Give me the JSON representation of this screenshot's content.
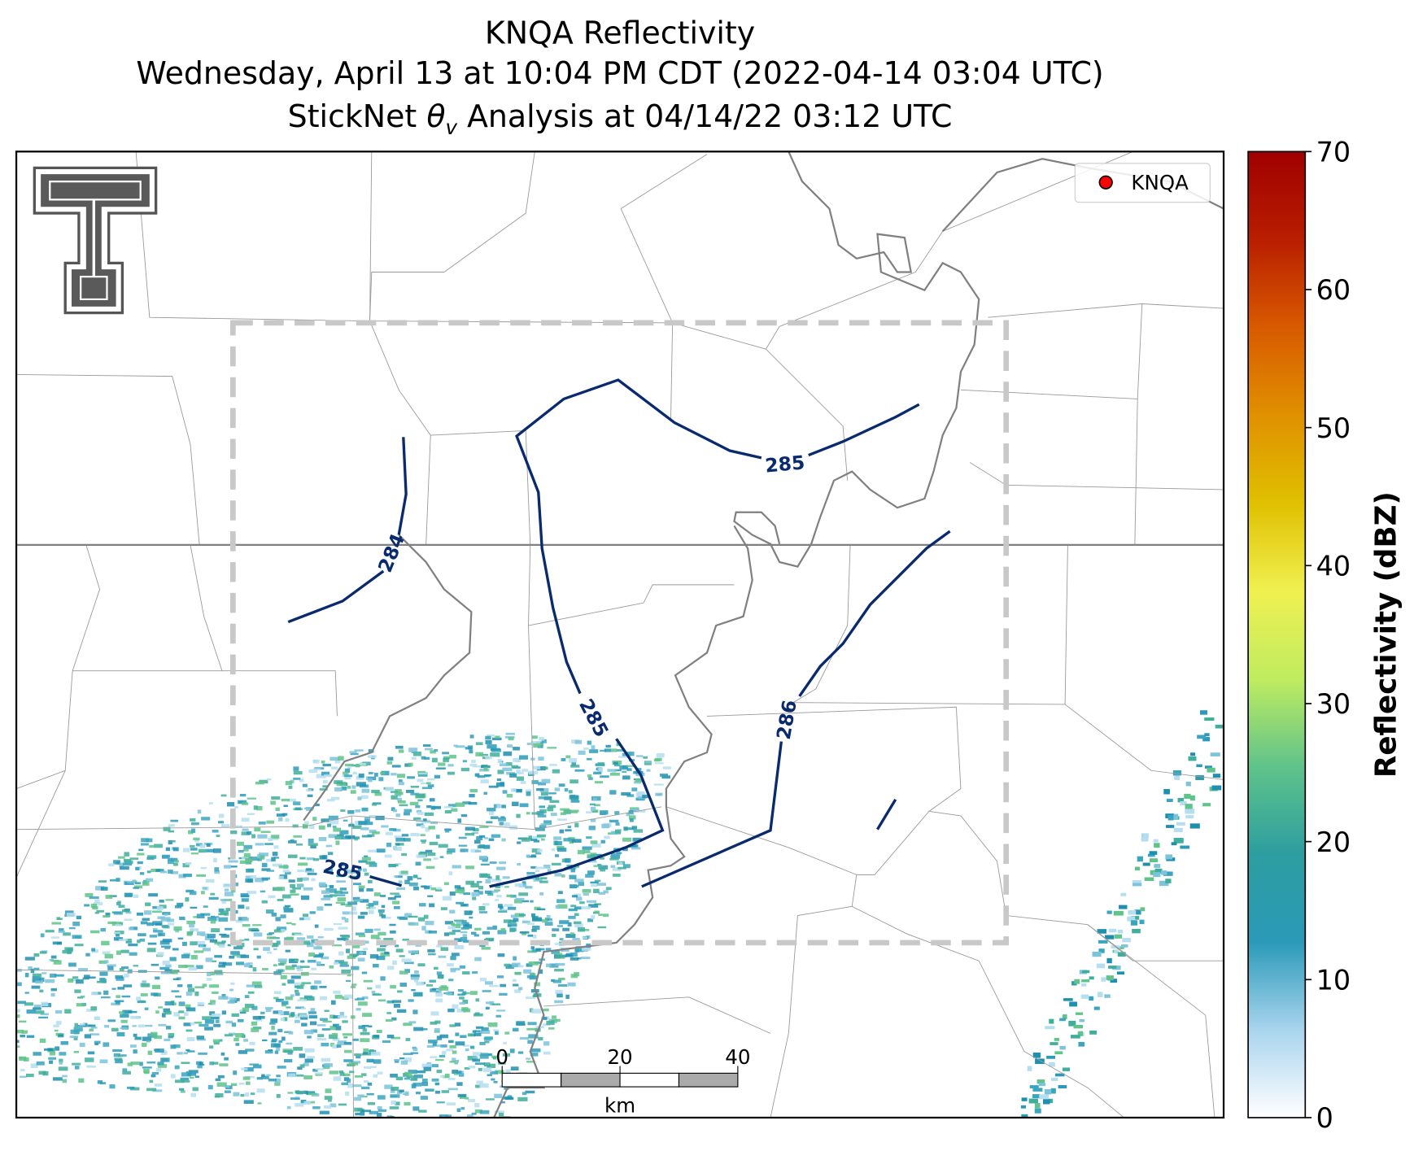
{
  "title_lines": [
    "KNQA Reflectivity",
    "Wednesday, April 13 at 10:04 PM CDT (2022-04-14 03:04 UTC)"
  ],
  "title_line3": {
    "prefix": "StickNet ",
    "symbol": "θ",
    "subscript": "v",
    "suffix": " Analysis at 04/14/22 03:12 UTC"
  },
  "legend": {
    "label": "KNQA",
    "color": "#ff0000",
    "corner": "upper right"
  },
  "contour_labels": [
    284,
    285,
    285,
    285,
    286
  ],
  "contour_color": "#0a2a6e",
  "scale_bar": {
    "ticks": [
      0,
      20,
      40
    ],
    "unit": "km"
  },
  "colorbar": {
    "label": "Reflectivity (dBZ)",
    "ylim": [
      0,
      70
    ],
    "yticks": [
      0,
      10,
      20,
      30,
      40,
      50,
      60,
      70
    ],
    "colors": [
      "#ffffff",
      "#a9d4ee",
      "#2a9ab8",
      "#2d9ea0",
      "#5fc38a",
      "#c0ec60",
      "#f0f050",
      "#e0c000",
      "#e09000",
      "#d85a00",
      "#b81e00",
      "#a00000"
    ]
  }
}
